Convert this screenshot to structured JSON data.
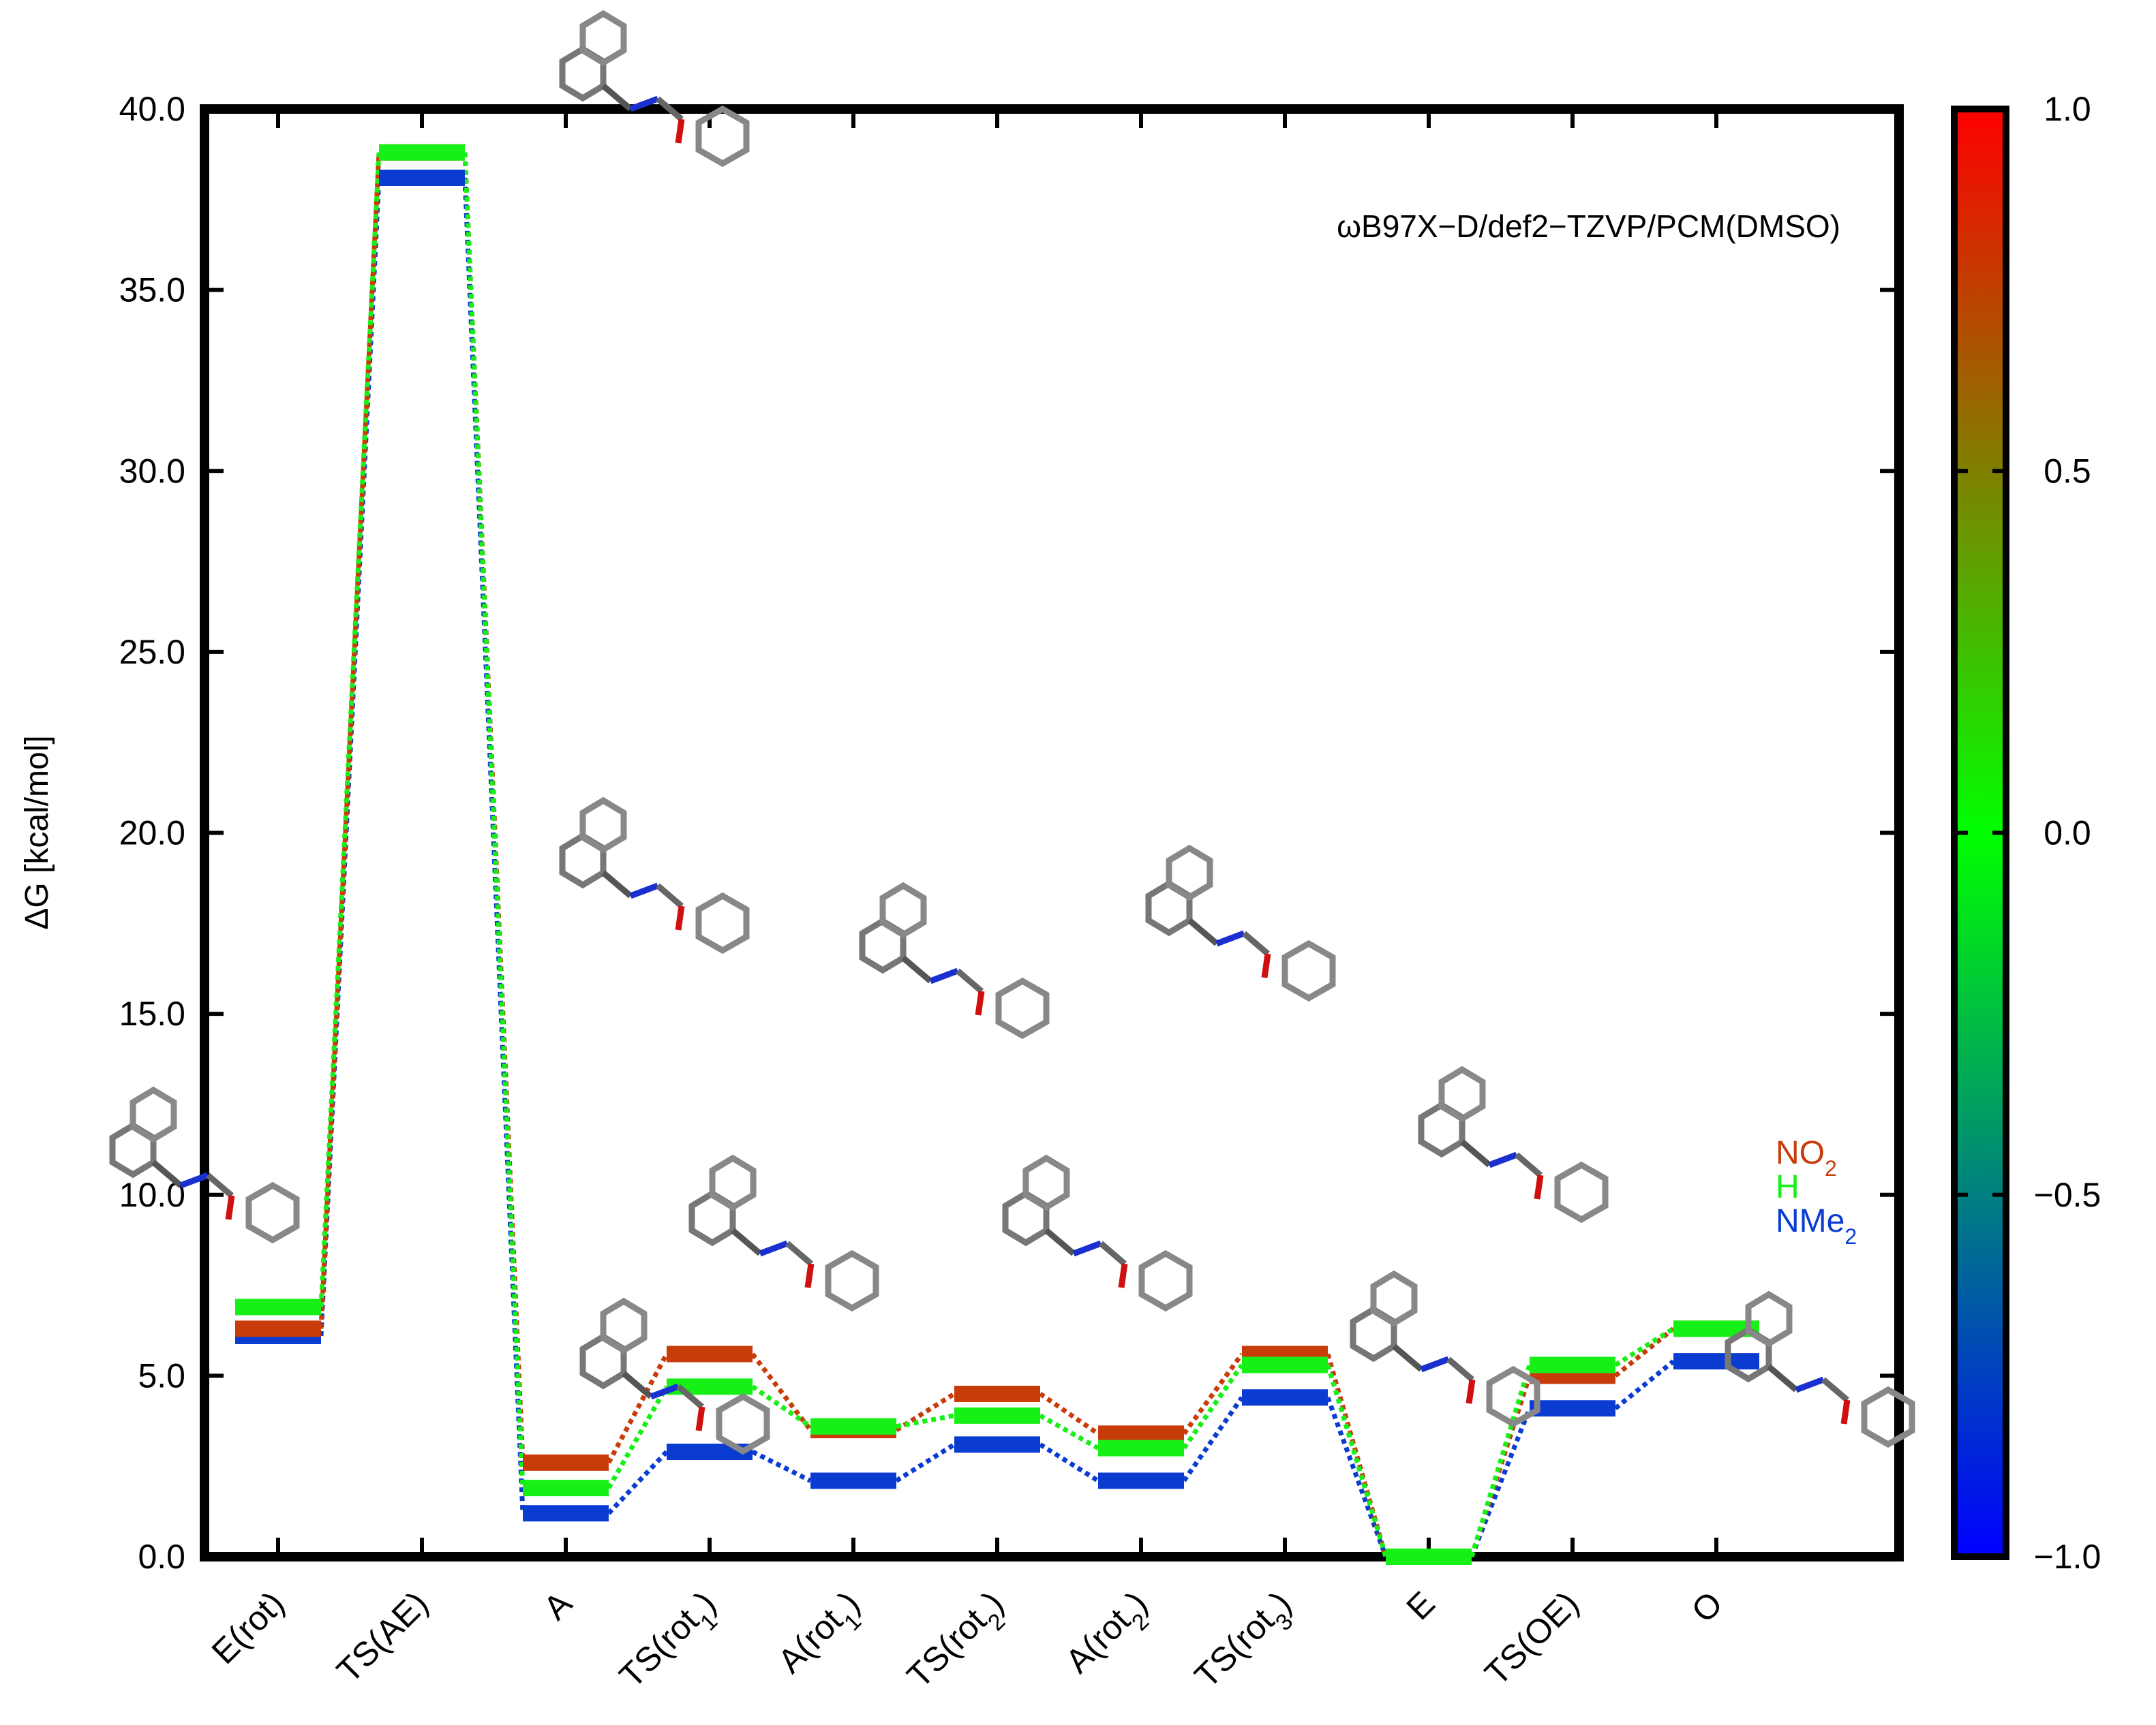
{
  "chart_data": {
    "type": "line",
    "title": "",
    "ylabel": "ΔG [kcal/mol]",
    "ylim": [
      0,
      40
    ],
    "yticks": [
      "0.0",
      "5.0",
      "10.0",
      "15.0",
      "20.0",
      "25.0",
      "30.0",
      "35.0",
      "40.0"
    ],
    "annotation": "ωB97X−D/def2−TZVP/PCM(DMSO)",
    "categories": [
      {
        "base": "E(rot)",
        "sub": "",
        "tail": ""
      },
      {
        "base": "TS(AE)",
        "sub": "",
        "tail": ""
      },
      {
        "base": "A",
        "sub": "",
        "tail": ""
      },
      {
        "base": "TS(rot",
        "sub": "1",
        "tail": ")"
      },
      {
        "base": "A(rot",
        "sub": "1",
        "tail": ")"
      },
      {
        "base": "TS(rot",
        "sub": "2",
        "tail": ")"
      },
      {
        "base": "A(rot",
        "sub": "2",
        "tail": ")"
      },
      {
        "base": "TS(rot",
        "sub": "3",
        "tail": ")"
      },
      {
        "base": "E",
        "sub": "",
        "tail": ""
      },
      {
        "base": "TS(OE)",
        "sub": "",
        "tail": ""
      },
      {
        "base": "O",
        "sub": "",
        "tail": ""
      }
    ],
    "series": [
      {
        "name": "NO2",
        "label_base": "NO",
        "label_sub": "2",
        "color": "#c83c0a",
        "values": [
          6.3,
          38.8,
          2.6,
          5.6,
          3.5,
          4.5,
          3.4,
          5.6,
          0.0,
          5.0,
          6.3
        ]
      },
      {
        "name": "H",
        "label_base": "H",
        "label_sub": "",
        "color": "#16f016",
        "values": [
          6.9,
          38.8,
          1.9,
          4.7,
          3.6,
          3.9,
          3.0,
          5.3,
          0.0,
          5.3,
          6.3
        ]
      },
      {
        "name": "NMe2",
        "label_base": "NMe",
        "label_sub": "2",
        "color": "#0a3cd2",
        "values": [
          6.1,
          38.1,
          1.2,
          2.9,
          2.1,
          3.1,
          2.1,
          4.4,
          0.0,
          4.1,
          5.4
        ]
      }
    ],
    "colorbar": {
      "range": [
        -1.0,
        1.0
      ],
      "ticks": [
        "1.0",
        "0.5",
        "0.0",
        "−0.5",
        "−1.0"
      ],
      "colors": [
        "#ff0000",
        "#00ff00",
        "#0000ff"
      ]
    },
    "structure_icons": [
      "molecule-E-rot",
      "molecule-TS-AE",
      "molecule-A",
      "molecule-A-rot1-upper",
      "molecule-A-rot2-upper",
      "molecule-TS-rot3-upper",
      "molecule-TS-OE",
      "molecule-TS-rot1-lower",
      "molecule-A-rot2-lower",
      "molecule-E",
      "molecule-O"
    ]
  }
}
